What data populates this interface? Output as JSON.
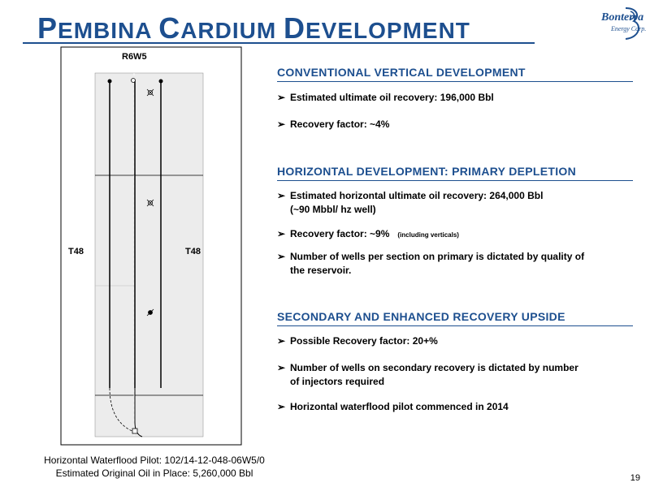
{
  "title": {
    "first_cap": "P",
    "first_rest": "EMBINA",
    "second_cap": "C",
    "second_rest": "ARDIUM",
    "third_cap": "D",
    "third_rest": "EVELOPMENT"
  },
  "logo": {
    "name": "Bonterra",
    "tagline": "Energy Corp."
  },
  "map": {
    "range_label": "R6W5",
    "township_left": "T48",
    "township_right": "T48"
  },
  "section1": {
    "heading": "CONVENTIONAL VERTICAL DEVELOPMENT",
    "bullets": [
      "Estimated ultimate oil recovery: 196,000 Bbl",
      "Recovery factor: ~4%"
    ]
  },
  "section2": {
    "heading": "HORIZONTAL DEVELOPMENT: PRIMARY DEPLETION",
    "b1_line1": "Estimated horizontal ultimate oil recovery: 264,000 Bbl",
    "b1_line2": "(~90 Mbbl/ hz well)",
    "b2_main": "Recovery factor: ~9%",
    "b2_note": "(including verticals)",
    "b3_line1": "Number of wells per section on primary is dictated by quality of",
    "b3_line2": "the reservoir."
  },
  "section3": {
    "heading": "SECONDARY AND ENHANCED RECOVERY UPSIDE",
    "b1": "Possible Recovery factor: 20+%",
    "b2_line1": "Number of wells on secondary recovery is dictated by number",
    "b2_line2": "of injectors required",
    "b3": "Horizontal waterflood pilot commenced in 2014"
  },
  "caption": {
    "line1": "Horizontal Waterflood Pilot: 102/14-12-048-06W5/0",
    "line2": "Estimated Original Oil in Place: 5,260,000 Bbl"
  },
  "page_number": "19",
  "colors": {
    "accent": "#1d4f8f"
  }
}
